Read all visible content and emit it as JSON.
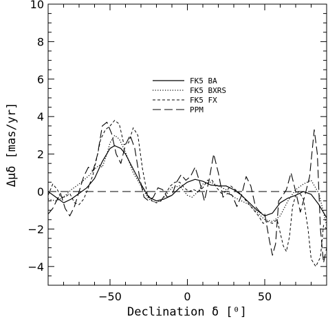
{
  "chart_data": {
    "type": "line",
    "xlabel": "Declination δ [⁰]",
    "ylabel": "Δμδ [mas/yr]",
    "xlim": [
      -90,
      90
    ],
    "ylim": [
      -5,
      10
    ],
    "x_ticks": [
      -50,
      0,
      50
    ],
    "x_tick_labels": [
      "−50",
      "0",
      "50"
    ],
    "y_ticks": [
      -4,
      -2,
      0,
      2,
      4,
      6,
      8,
      10
    ],
    "y_tick_labels": [
      "−4",
      "−2",
      "0",
      "2",
      "4",
      "6",
      "8",
      "10"
    ],
    "grid": false,
    "legend_position": "upper-center",
    "reference_line_y": 0,
    "series": [
      {
        "name": "FK5 BA",
        "style": "solid",
        "points": [
          [
            -90,
            0.0
          ],
          [
            -85,
            -0.3
          ],
          [
            -80,
            -0.6
          ],
          [
            -75,
            -0.4
          ],
          [
            -70,
            -0.1
          ],
          [
            -65,
            0.2
          ],
          [
            -60,
            0.7
          ],
          [
            -55,
            1.6
          ],
          [
            -50,
            2.3
          ],
          [
            -47,
            2.45
          ],
          [
            -43,
            2.3
          ],
          [
            -40,
            2.0
          ],
          [
            -35,
            1.2
          ],
          [
            -30,
            0.4
          ],
          [
            -25,
            -0.3
          ],
          [
            -20,
            -0.5
          ],
          [
            -15,
            -0.4
          ],
          [
            -10,
            -0.2
          ],
          [
            -5,
            0.2
          ],
          [
            0,
            0.5
          ],
          [
            5,
            0.65
          ],
          [
            10,
            0.55
          ],
          [
            15,
            0.35
          ],
          [
            20,
            0.3
          ],
          [
            25,
            0.3
          ],
          [
            30,
            0.1
          ],
          [
            35,
            -0.2
          ],
          [
            40,
            -0.6
          ],
          [
            45,
            -1.0
          ],
          [
            50,
            -1.3
          ],
          [
            55,
            -1.15
          ],
          [
            60,
            -0.6
          ],
          [
            65,
            -0.35
          ],
          [
            70,
            -0.2
          ],
          [
            75,
            0.0
          ],
          [
            80,
            -0.15
          ],
          [
            85,
            -0.7
          ],
          [
            90,
            -1.4
          ]
        ]
      },
      {
        "name": "FK5 BXRS",
        "style": "dotted",
        "points": [
          [
            -90,
            -0.4
          ],
          [
            -85,
            -0.5
          ],
          [
            -80,
            -0.3
          ],
          [
            -75,
            0.1
          ],
          [
            -70,
            0.4
          ],
          [
            -67,
            0.6
          ],
          [
            -63,
            0.9
          ],
          [
            -60,
            1.2
          ],
          [
            -57,
            1.4
          ],
          [
            -55,
            1.3
          ],
          [
            -52,
            2.0
          ],
          [
            -50,
            2.6
          ],
          [
            -47,
            3.0
          ],
          [
            -44,
            2.8
          ],
          [
            -40,
            2.1
          ],
          [
            -35,
            1.0
          ],
          [
            -30,
            0.3
          ],
          [
            -25,
            -0.4
          ],
          [
            -20,
            -0.6
          ],
          [
            -15,
            -0.3
          ],
          [
            -10,
            0.2
          ],
          [
            -5,
            0.3
          ],
          [
            0,
            -0.2
          ],
          [
            3,
            -0.3
          ],
          [
            7,
            0.0
          ],
          [
            10,
            0.4
          ],
          [
            15,
            0.5
          ],
          [
            20,
            0.3
          ],
          [
            25,
            0.1
          ],
          [
            30,
            -0.3
          ],
          [
            35,
            -0.5
          ],
          [
            40,
            -0.7
          ],
          [
            45,
            -1.1
          ],
          [
            50,
            -1.5
          ],
          [
            55,
            -1.6
          ],
          [
            60,
            -1.3
          ],
          [
            65,
            -0.5
          ],
          [
            70,
            0.1
          ],
          [
            75,
            0.4
          ],
          [
            80,
            0.6
          ],
          [
            85,
            -0.1
          ],
          [
            90,
            -1.8
          ]
        ]
      },
      {
        "name": "FK5 FX",
        "style": "short-dash",
        "points": [
          [
            -90,
            -0.2
          ],
          [
            -87,
            0.4
          ],
          [
            -84,
            0.1
          ],
          [
            -82,
            -0.3
          ],
          [
            -79,
            -0.3
          ],
          [
            -76,
            -0.1
          ],
          [
            -73,
            -0.6
          ],
          [
            -70,
            -0.7
          ],
          [
            -67,
            -0.4
          ],
          [
            -64,
            0.2
          ],
          [
            -61,
            0.9
          ],
          [
            -58,
            2.0
          ],
          [
            -56,
            2.8
          ],
          [
            -53,
            3.3
          ],
          [
            -50,
            3.5
          ],
          [
            -47,
            3.8
          ],
          [
            -44,
            3.6
          ],
          [
            -41,
            2.5
          ],
          [
            -38,
            2.6
          ],
          [
            -35,
            3.4
          ],
          [
            -32,
            3.0
          ],
          [
            -29,
            1.2
          ],
          [
            -26,
            -0.1
          ],
          [
            -23,
            -0.5
          ],
          [
            -20,
            -0.6
          ],
          [
            -17,
            -0.5
          ],
          [
            -14,
            -0.1
          ],
          [
            -11,
            0.3
          ],
          [
            -8,
            0.5
          ],
          [
            -5,
            0.5
          ],
          [
            -2,
            0.2
          ],
          [
            1,
            0.0
          ],
          [
            4,
            0.1
          ],
          [
            7,
            0.0
          ],
          [
            10,
            0.2
          ],
          [
            13,
            0.6
          ],
          [
            16,
            0.6
          ],
          [
            19,
            0.2
          ],
          [
            22,
            -0.1
          ],
          [
            25,
            0.0
          ],
          [
            28,
            0.3
          ],
          [
            31,
            0.1
          ],
          [
            34,
            -0.1
          ],
          [
            37,
            -0.4
          ],
          [
            40,
            -0.7
          ],
          [
            43,
            -1.0
          ],
          [
            46,
            -1.3
          ],
          [
            49,
            -1.7
          ],
          [
            52,
            -1.6
          ],
          [
            55,
            -1.7
          ],
          [
            58,
            -1.5
          ],
          [
            60,
            -2.2
          ],
          [
            62,
            -2.9
          ],
          [
            64,
            -3.2
          ],
          [
            66,
            -2.4
          ],
          [
            68,
            -0.8
          ],
          [
            70,
            -0.2
          ],
          [
            72,
            0.0
          ],
          [
            75,
            -0.4
          ],
          [
            78,
            -2.0
          ],
          [
            80,
            -3.6
          ],
          [
            83,
            -4.0
          ],
          [
            86,
            -3.5
          ],
          [
            88,
            -1.8
          ],
          [
            90,
            -2.0
          ]
        ]
      },
      {
        "name": "PPM",
        "style": "long-dash",
        "points": [
          [
            -90,
            -1.2
          ],
          [
            -87,
            -0.9
          ],
          [
            -84,
            -0.4
          ],
          [
            -82,
            -0.1
          ],
          [
            -79,
            -0.9
          ],
          [
            -76,
            -1.3
          ],
          [
            -73,
            -0.8
          ],
          [
            -70,
            0.0
          ],
          [
            -67,
            0.8
          ],
          [
            -64,
            1.3
          ],
          [
            -61,
            1.1
          ],
          [
            -58,
            2.0
          ],
          [
            -55,
            3.5
          ],
          [
            -52,
            3.7
          ],
          [
            -49,
            3.1
          ],
          [
            -46,
            2.0
          ],
          [
            -43,
            1.5
          ],
          [
            -40,
            2.5
          ],
          [
            -37,
            3.0
          ],
          [
            -34,
            2.3
          ],
          [
            -31,
            0.8
          ],
          [
            -28,
            -0.3
          ],
          [
            -25,
            -0.5
          ],
          [
            -22,
            -0.3
          ],
          [
            -19,
            0.2
          ],
          [
            -16,
            0.1
          ],
          [
            -13,
            -0.3
          ],
          [
            -10,
            -0.2
          ],
          [
            -7,
            0.5
          ],
          [
            -4,
            0.9
          ],
          [
            -1,
            0.6
          ],
          [
            2,
            0.8
          ],
          [
            5,
            1.3
          ],
          [
            8,
            0.5
          ],
          [
            11,
            -0.5
          ],
          [
            14,
            0.6
          ],
          [
            17,
            2.0
          ],
          [
            20,
            1.0
          ],
          [
            23,
            -0.3
          ],
          [
            26,
            -0.1
          ],
          [
            29,
            -0.2
          ],
          [
            32,
            -0.8
          ],
          [
            35,
            -0.2
          ],
          [
            38,
            0.8
          ],
          [
            41,
            0.3
          ],
          [
            44,
            -0.8
          ],
          [
            47,
            -1.1
          ],
          [
            50,
            -1.2
          ],
          [
            53,
            -2.6
          ],
          [
            55,
            -3.4
          ],
          [
            57,
            -2.8
          ],
          [
            59,
            -0.5
          ],
          [
            61,
            -0.3
          ],
          [
            64,
            0.1
          ],
          [
            67,
            1.0
          ],
          [
            70,
            0.0
          ],
          [
            73,
            -1.1
          ],
          [
            76,
            -0.2
          ],
          [
            79,
            0.8
          ],
          [
            82,
            3.3
          ],
          [
            84,
            2.0
          ],
          [
            86,
            -2.0
          ],
          [
            88,
            -3.8
          ],
          [
            90,
            -3.0
          ]
        ]
      }
    ]
  }
}
